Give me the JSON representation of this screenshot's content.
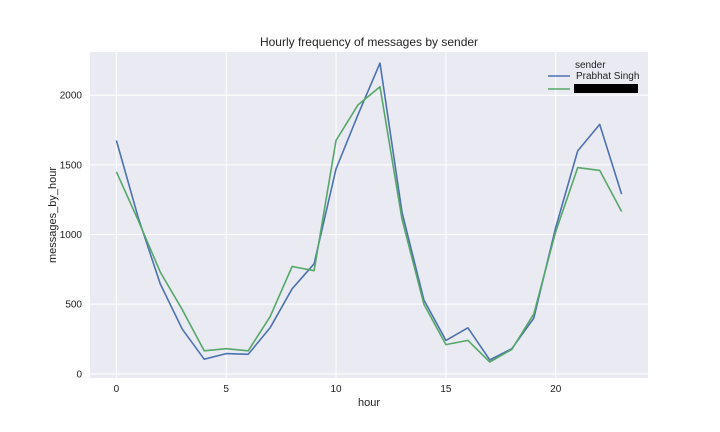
{
  "chart_data": {
    "type": "line",
    "title": "Hourly frequency of messages by sender",
    "xlabel": "hour",
    "ylabel": "messages_by_hour",
    "xlim": [
      -1.2,
      24.2
    ],
    "ylim": [
      -30,
      2310
    ],
    "xticks": [
      0,
      5,
      10,
      15,
      20
    ],
    "yticks": [
      0,
      500,
      1000,
      1500,
      2000
    ],
    "grid": true,
    "legend": {
      "title": "sender",
      "placement": "top-right"
    },
    "x": [
      0,
      1,
      2,
      3,
      4,
      5,
      6,
      7,
      8,
      9,
      10,
      11,
      12,
      13,
      14,
      15,
      16,
      17,
      18,
      19,
      20,
      21,
      22,
      23
    ],
    "series": [
      {
        "name": "Prabhat Singh",
        "color": "#4c72b0",
        "values": [
          1675,
          1120,
          645,
          320,
          105,
          145,
          140,
          330,
          610,
          790,
          1470,
          1860,
          2230,
          1160,
          530,
          240,
          330,
          100,
          180,
          400,
          1050,
          1600,
          1790,
          1290
        ]
      },
      {
        "name": "",
        "color": "#55a868",
        "redacted": true,
        "values": [
          1450,
          1100,
          730,
          460,
          165,
          180,
          165,
          410,
          770,
          740,
          1675,
          1930,
          2060,
          1110,
          500,
          210,
          240,
          85,
          175,
          430,
          1020,
          1480,
          1460,
          1165
        ]
      }
    ]
  }
}
